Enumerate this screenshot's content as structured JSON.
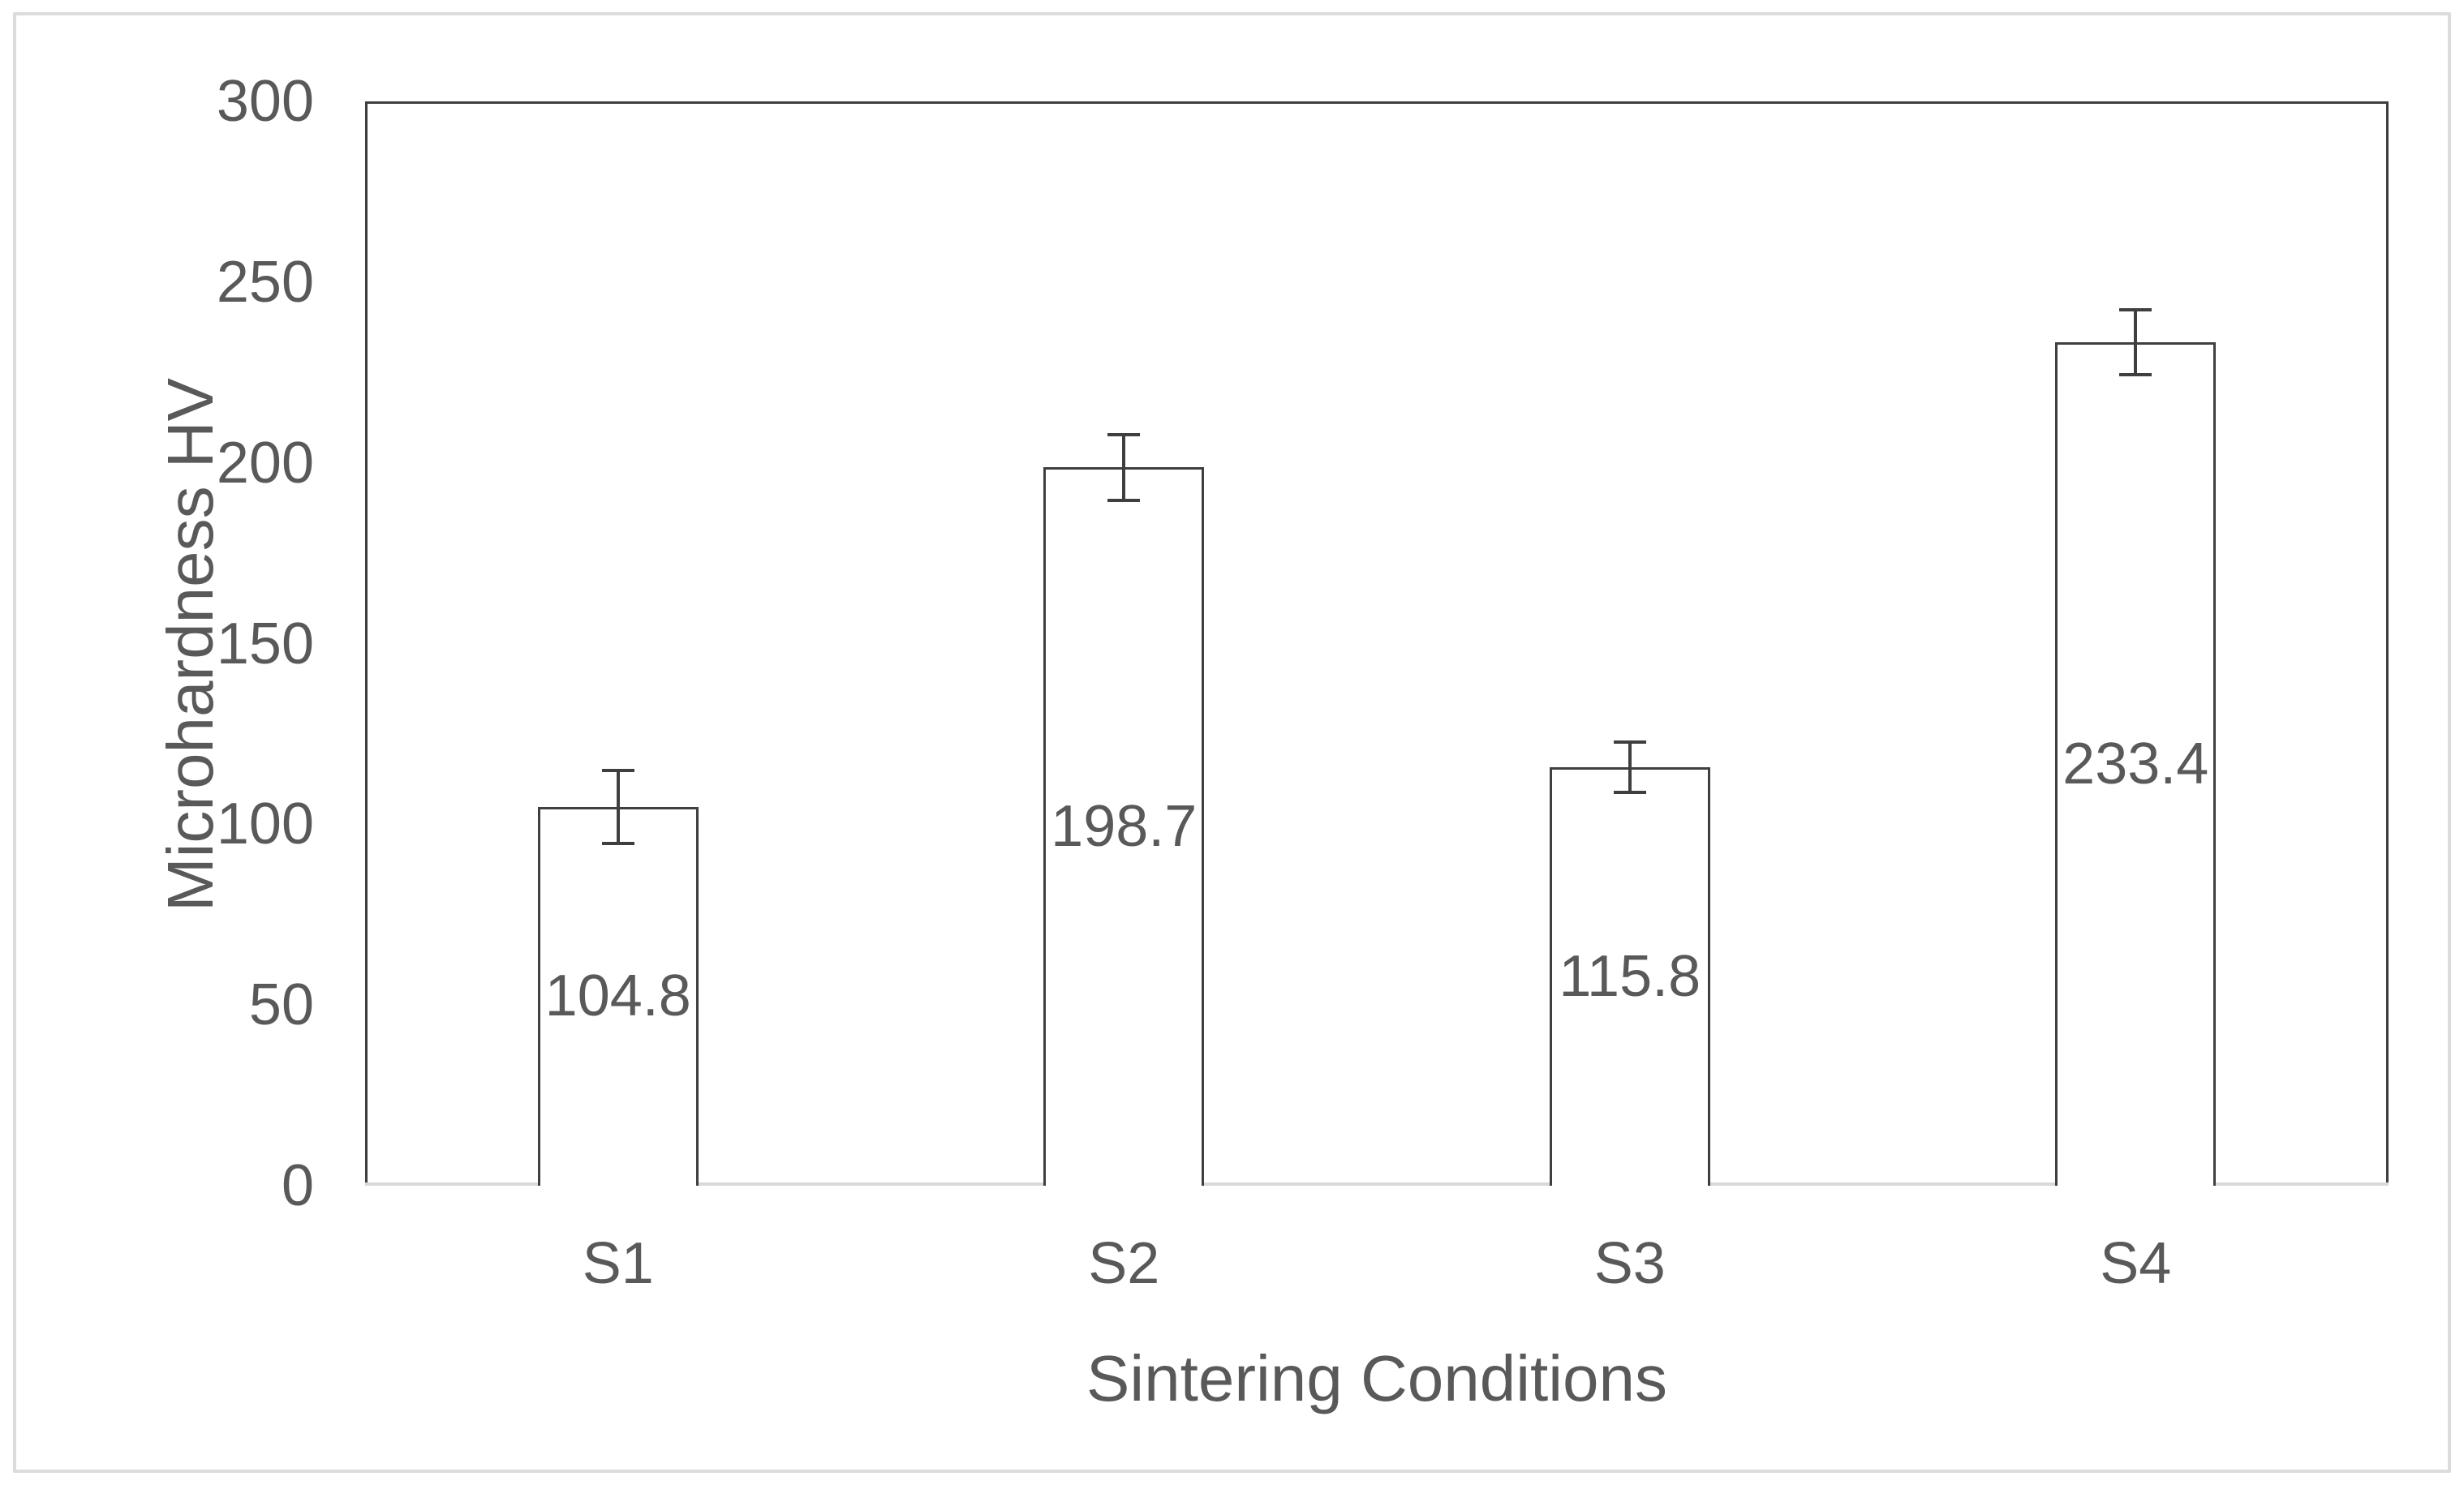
{
  "chart_data": {
    "type": "bar",
    "title": "",
    "categories": [
      "S1",
      "S2",
      "S3",
      "S4"
    ],
    "values": [
      104.8,
      198.7,
      115.8,
      233.4
    ],
    "data_labels": [
      "104.8",
      "198.7",
      "115.8",
      "233.4"
    ],
    "error_bars_plus_minus": [
      10,
      9,
      7,
      9
    ],
    "xlabel": "Sintering Conditions",
    "ylabel": "Microhardness HV",
    "ylim": [
      0,
      300
    ],
    "yticks": [
      0,
      50,
      100,
      150,
      200,
      250,
      300
    ],
    "grid": "off",
    "legend": "none",
    "colors": {
      "bar_fill": "#ffffff",
      "bar_border": "#3f3f3f",
      "error_bar": "#3f3f3f",
      "plot_frame": "#3f3f3f",
      "baseline_axis": "#d9d9d9",
      "outer_border": "#dcdcdc",
      "text": "#595959",
      "background": "#ffffff"
    }
  }
}
